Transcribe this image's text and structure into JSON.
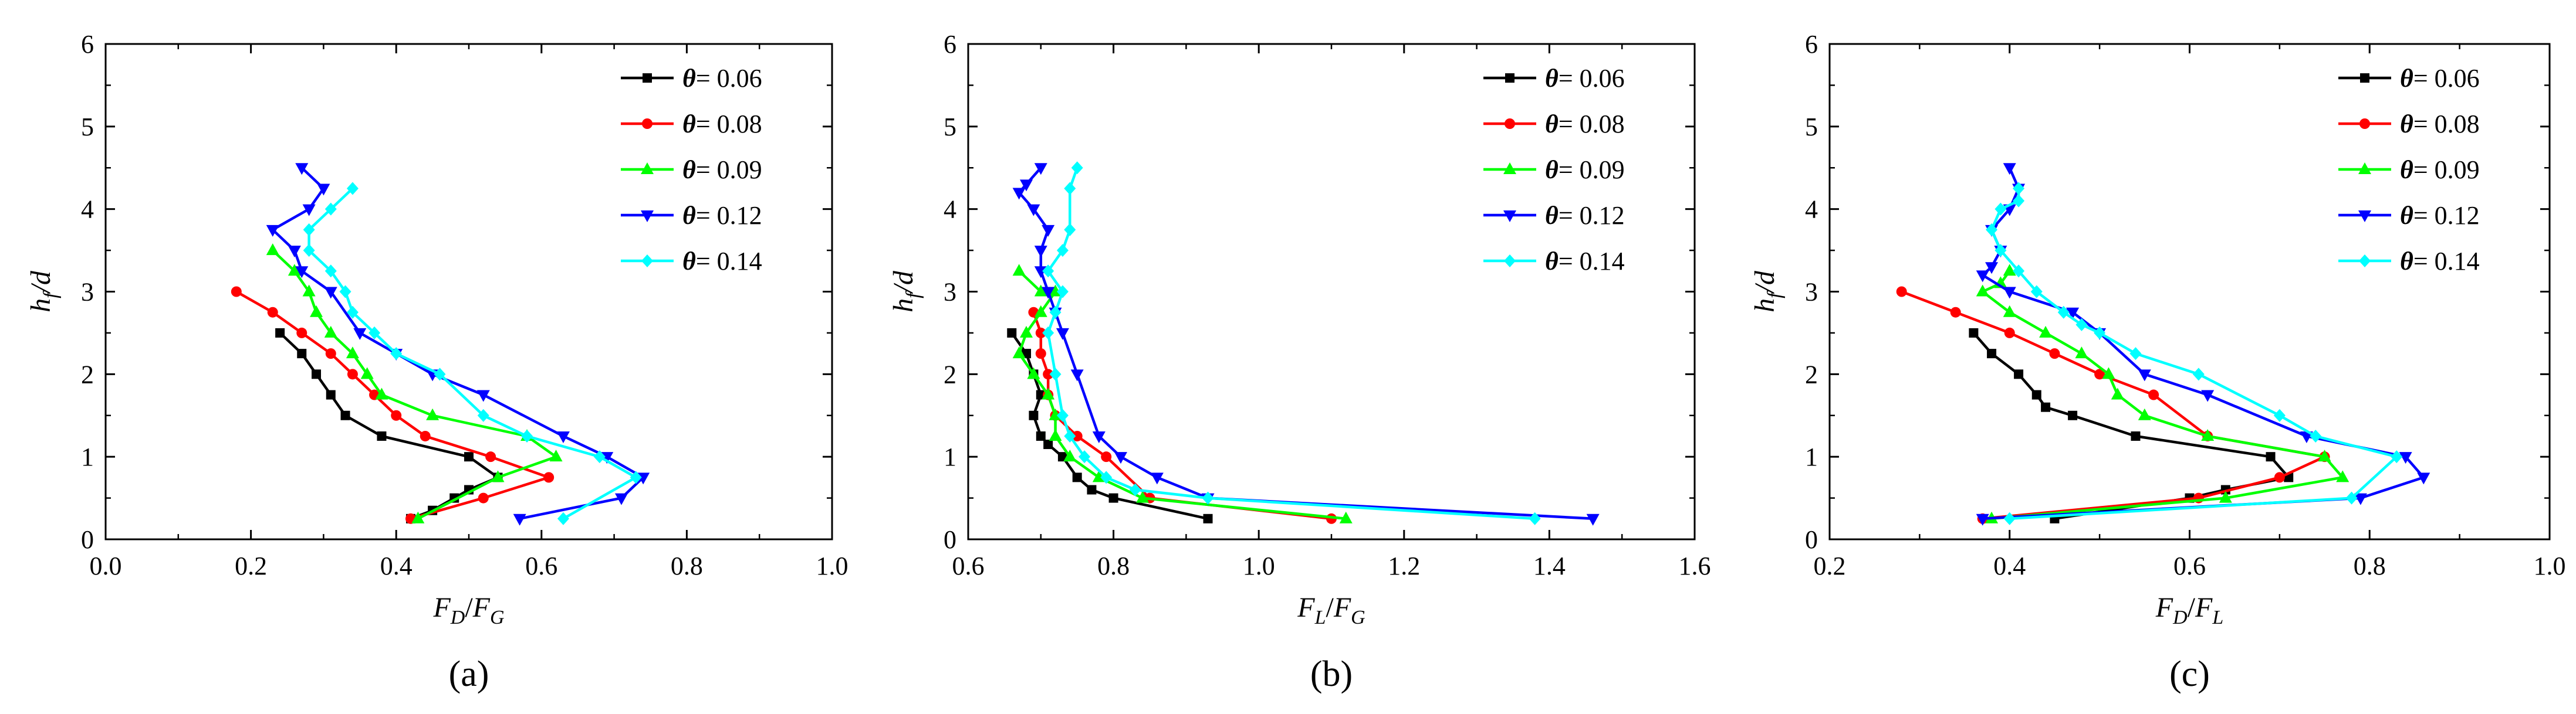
{
  "figure": {
    "legend_symbol": "θ",
    "legend_equals": "= "
  },
  "chart_data": [
    {
      "type": "line",
      "panel_label": "(a)",
      "xlabel_main": "F",
      "xlabel_sub1": "D",
      "xlabel_sep": "/",
      "xlabel_main2": "F",
      "xlabel_sub2": "G",
      "ylabel_main": "h",
      "ylabel_sub": "f",
      "ylabel_tail": "/d",
      "xlim": [
        0.0,
        1.0
      ],
      "ylim": [
        0,
        6
      ],
      "xticks": [
        0.0,
        0.2,
        0.4,
        0.6,
        0.8,
        1.0
      ],
      "xtick_labels": [
        "0.0",
        "0.2",
        "0.4",
        "0.6",
        "0.8",
        "1.0"
      ],
      "yticks": [
        0,
        1,
        2,
        3,
        4,
        5,
        6
      ],
      "ytick_labels": [
        "0",
        "1",
        "2",
        "3",
        "4",
        "5",
        "6"
      ],
      "legend_position": "top-right",
      "series": [
        {
          "name": "0.06",
          "color": "#000000",
          "marker": "square",
          "x": [
            0.24,
            0.27,
            0.29,
            0.31,
            0.33,
            0.38,
            0.5,
            0.54,
            0.5,
            0.48,
            0.45,
            0.42
          ],
          "y": [
            2.5,
            2.25,
            2.0,
            1.75,
            1.5,
            1.25,
            1.0,
            0.75,
            0.6,
            0.5,
            0.35,
            0.25
          ]
        },
        {
          "name": "0.08",
          "color": "#ff0000",
          "marker": "circle",
          "x": [
            0.18,
            0.23,
            0.27,
            0.31,
            0.34,
            0.37,
            0.4,
            0.44,
            0.53,
            0.61,
            0.52,
            0.42
          ],
          "y": [
            3.0,
            2.75,
            2.5,
            2.25,
            2.0,
            1.75,
            1.5,
            1.25,
            1.0,
            0.75,
            0.5,
            0.25
          ]
        },
        {
          "name": "0.09",
          "color": "#00ff00",
          "marker": "triangle-up",
          "x": [
            0.23,
            0.26,
            0.28,
            0.29,
            0.31,
            0.34,
            0.36,
            0.38,
            0.45,
            0.58,
            0.62,
            0.54,
            0.43
          ],
          "y": [
            3.5,
            3.25,
            3.0,
            2.75,
            2.5,
            2.25,
            2.0,
            1.75,
            1.5,
            1.25,
            1.0,
            0.75,
            0.25
          ]
        },
        {
          "name": "0.12",
          "color": "#0000ff",
          "marker": "triangle-down",
          "x": [
            0.27,
            0.3,
            0.28,
            0.23,
            0.26,
            0.27,
            0.31,
            0.35,
            0.4,
            0.45,
            0.52,
            0.63,
            0.69,
            0.74,
            0.71,
            0.57
          ],
          "y": [
            4.5,
            4.25,
            4.0,
            3.75,
            3.5,
            3.25,
            3.0,
            2.5,
            2.25,
            2.0,
            1.75,
            1.25,
            1.0,
            0.75,
            0.5,
            0.25
          ]
        },
        {
          "name": "0.14",
          "color": "#00ffff",
          "marker": "diamond",
          "x": [
            0.34,
            0.31,
            0.28,
            0.28,
            0.31,
            0.33,
            0.34,
            0.37,
            0.4,
            0.46,
            0.52,
            0.58,
            0.68,
            0.73,
            0.63
          ],
          "y": [
            4.25,
            4.0,
            3.75,
            3.5,
            3.25,
            3.0,
            2.75,
            2.5,
            2.25,
            2.0,
            1.5,
            1.25,
            1.0,
            0.75,
            0.25
          ]
        }
      ]
    },
    {
      "type": "line",
      "panel_label": "(b)",
      "xlabel_main": "F",
      "xlabel_sub1": "L",
      "xlabel_sep": "/",
      "xlabel_main2": "F",
      "xlabel_sub2": "G",
      "ylabel_main": "h",
      "ylabel_sub": "f",
      "ylabel_tail": "/d",
      "xlim": [
        0.6,
        1.6
      ],
      "ylim": [
        0,
        6
      ],
      "xticks": [
        0.6,
        0.8,
        1.0,
        1.2,
        1.4,
        1.6
      ],
      "xtick_labels": [
        "0.6",
        "0.8",
        "1.0",
        "1.2",
        "1.4",
        "1.6"
      ],
      "yticks": [
        0,
        1,
        2,
        3,
        4,
        5,
        6
      ],
      "ytick_labels": [
        "0",
        "1",
        "2",
        "3",
        "4",
        "5",
        "6"
      ],
      "legend_position": "top-right",
      "series": [
        {
          "name": "0.06",
          "color": "#000000",
          "marker": "square",
          "x": [
            0.66,
            0.68,
            0.69,
            0.7,
            0.69,
            0.7,
            0.71,
            0.73,
            0.75,
            0.77,
            0.8,
            0.93
          ],
          "y": [
            2.5,
            2.25,
            2.0,
            1.75,
            1.5,
            1.25,
            1.15,
            1.0,
            0.75,
            0.6,
            0.5,
            0.25
          ]
        },
        {
          "name": "0.08",
          "color": "#ff0000",
          "marker": "circle",
          "x": [
            0.69,
            0.7,
            0.7,
            0.71,
            0.71,
            0.72,
            0.75,
            0.79,
            0.85,
            1.1
          ],
          "y": [
            2.75,
            2.5,
            2.25,
            2.0,
            1.75,
            1.5,
            1.25,
            1.0,
            0.5,
            0.25
          ]
        },
        {
          "name": "0.09",
          "color": "#00ff00",
          "marker": "triangle-up",
          "x": [
            0.67,
            0.7,
            0.72,
            0.7,
            0.68,
            0.67,
            0.69,
            0.71,
            0.72,
            0.72,
            0.74,
            0.78,
            0.84,
            1.12
          ],
          "y": [
            3.25,
            3.0,
            3.0,
            2.75,
            2.5,
            2.25,
            2.0,
            1.75,
            1.5,
            1.25,
            1.0,
            0.75,
            0.5,
            0.25
          ]
        },
        {
          "name": "0.12",
          "color": "#0000ff",
          "marker": "triangle-down",
          "x": [
            0.7,
            0.68,
            0.67,
            0.69,
            0.71,
            0.7,
            0.7,
            0.71,
            0.72,
            0.73,
            0.75,
            0.78,
            0.81,
            0.86,
            0.93,
            1.46
          ],
          "y": [
            4.5,
            4.3,
            4.2,
            4.0,
            3.75,
            3.5,
            3.25,
            3.0,
            2.75,
            2.5,
            2.0,
            1.25,
            1.0,
            0.75,
            0.5,
            0.25
          ]
        },
        {
          "name": "0.14",
          "color": "#00ffff",
          "marker": "diamond",
          "x": [
            0.75,
            0.74,
            0.74,
            0.73,
            0.71,
            0.73,
            0.72,
            0.71,
            0.72,
            0.73,
            0.74,
            0.76,
            0.79,
            0.83,
            0.93,
            1.38
          ],
          "y": [
            4.5,
            4.25,
            3.75,
            3.5,
            3.25,
            3.0,
            2.75,
            2.5,
            2.0,
            1.5,
            1.25,
            1.0,
            0.75,
            0.6,
            0.5,
            0.25
          ]
        }
      ]
    },
    {
      "type": "line",
      "panel_label": "(c)",
      "xlabel_main": "F",
      "xlabel_sub1": "D",
      "xlabel_sep": "/",
      "xlabel_main2": "F",
      "xlabel_sub2": "L",
      "ylabel_main": "h",
      "ylabel_sub": "f",
      "ylabel_tail": "/d",
      "xlim": [
        0.2,
        1.0
      ],
      "ylim": [
        0,
        6
      ],
      "xticks": [
        0.2,
        0.4,
        0.6,
        0.8,
        1.0
      ],
      "xtick_labels": [
        "0.2",
        "0.4",
        "0.6",
        "0.8",
        "1.0"
      ],
      "yticks": [
        0,
        1,
        2,
        3,
        4,
        5,
        6
      ],
      "ytick_labels": [
        "0",
        "1",
        "2",
        "3",
        "4",
        "5",
        "6"
      ],
      "legend_position": "top-right",
      "series": [
        {
          "name": "0.06",
          "color": "#000000",
          "marker": "square",
          "x": [
            0.36,
            0.38,
            0.41,
            0.43,
            0.44,
            0.47,
            0.54,
            0.69,
            0.71,
            0.64,
            0.6,
            0.45
          ],
          "y": [
            2.5,
            2.25,
            2.0,
            1.75,
            1.6,
            1.5,
            1.25,
            1.0,
            0.75,
            0.6,
            0.5,
            0.25
          ]
        },
        {
          "name": "0.08",
          "color": "#ff0000",
          "marker": "circle",
          "x": [
            0.28,
            0.34,
            0.4,
            0.45,
            0.5,
            0.56,
            0.62,
            0.75,
            0.7,
            0.61,
            0.37
          ],
          "y": [
            3.0,
            2.75,
            2.5,
            2.25,
            2.0,
            1.75,
            1.25,
            1.0,
            0.75,
            0.5,
            0.25
          ]
        },
        {
          "name": "0.09",
          "color": "#00ff00",
          "marker": "triangle-up",
          "x": [
            0.4,
            0.39,
            0.37,
            0.4,
            0.44,
            0.48,
            0.51,
            0.52,
            0.55,
            0.62,
            0.75,
            0.77,
            0.64,
            0.38
          ],
          "y": [
            3.25,
            3.1,
            3.0,
            2.75,
            2.5,
            2.25,
            2.0,
            1.75,
            1.5,
            1.25,
            1.0,
            0.75,
            0.5,
            0.25
          ]
        },
        {
          "name": "0.12",
          "color": "#0000ff",
          "marker": "triangle-down",
          "x": [
            0.4,
            0.41,
            0.4,
            0.38,
            0.39,
            0.38,
            0.37,
            0.4,
            0.47,
            0.5,
            0.55,
            0.62,
            0.73,
            0.84,
            0.86,
            0.79,
            0.37
          ],
          "y": [
            4.5,
            4.25,
            4.0,
            3.75,
            3.5,
            3.3,
            3.2,
            3.0,
            2.75,
            2.5,
            2.0,
            1.75,
            1.25,
            1.0,
            0.75,
            0.5,
            0.25
          ]
        },
        {
          "name": "0.14",
          "color": "#00ffff",
          "marker": "diamond",
          "x": [
            0.41,
            0.41,
            0.39,
            0.38,
            0.39,
            0.41,
            0.43,
            0.46,
            0.48,
            0.5,
            0.54,
            0.61,
            0.7,
            0.74,
            0.83,
            0.78,
            0.4
          ],
          "y": [
            4.25,
            4.1,
            4.0,
            3.75,
            3.5,
            3.25,
            3.0,
            2.75,
            2.6,
            2.5,
            2.25,
            2.0,
            1.5,
            1.25,
            1.0,
            0.5,
            0.25
          ]
        }
      ]
    }
  ]
}
